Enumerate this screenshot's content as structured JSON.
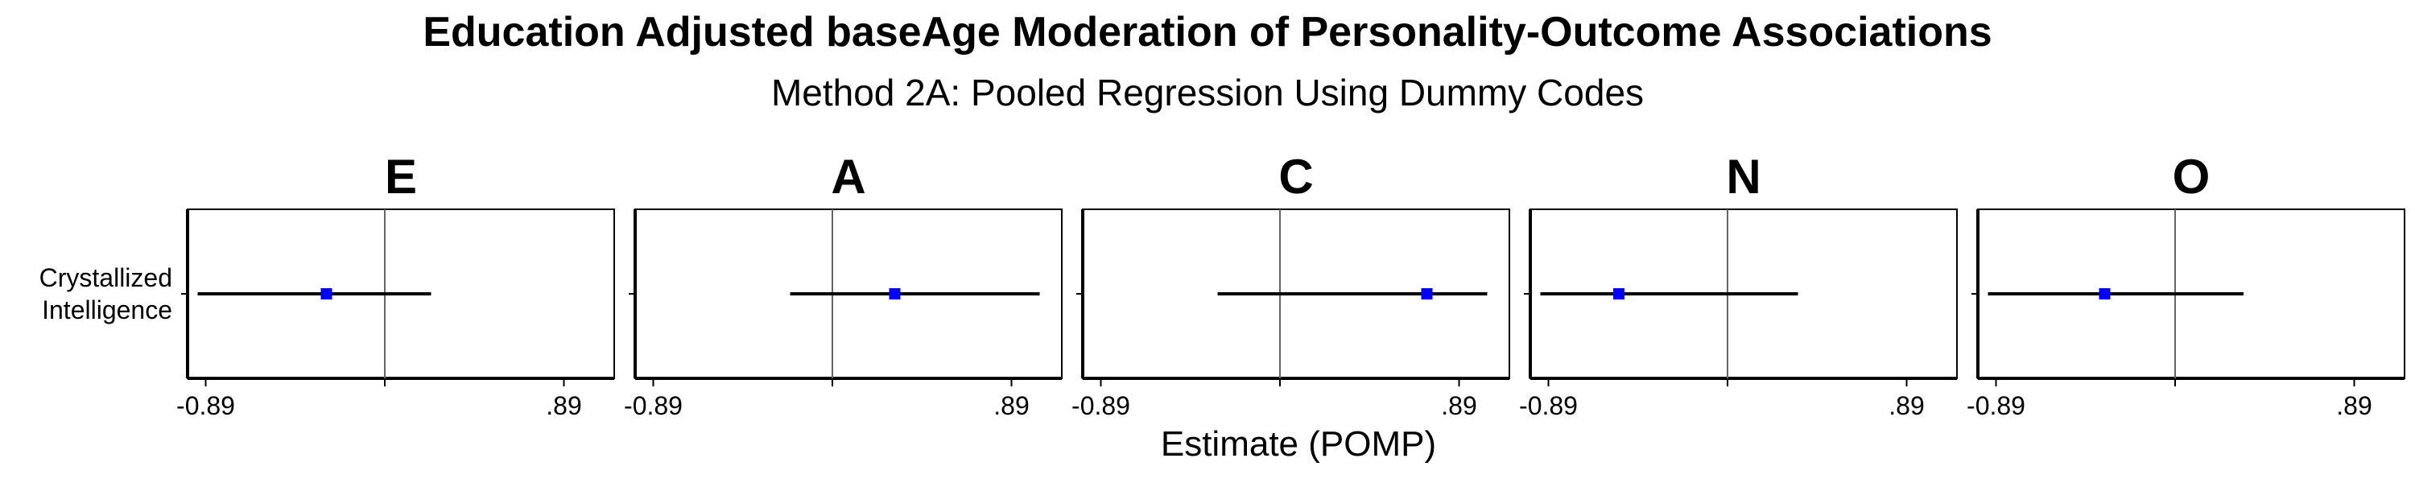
{
  "chart_data": {
    "type": "forest",
    "title": "Education Adjusted baseAge Moderation of Personality-Outcome Associations",
    "subtitle": "Method 2A: Pooled Regression Using Dummy Codes",
    "xlabel": "Estimate (POMP)",
    "y_category": "Crystallized\nIntelligence",
    "xlim": [
      -0.98,
      1.14
    ],
    "x_ticks": [
      {
        "value": -0.89,
        "label": "-0.89"
      },
      {
        "value": 0.0,
        "label": ""
      },
      {
        "value": 0.89,
        "label": ".89"
      }
    ],
    "reference_line": 0,
    "point_color": "#0000ff",
    "panels": [
      {
        "name": "E",
        "estimate": -0.29,
        "ci": [
          -0.93,
          0.23
        ]
      },
      {
        "name": "A",
        "estimate": 0.31,
        "ci": [
          -0.21,
          1.03
        ]
      },
      {
        "name": "C",
        "estimate": 0.73,
        "ci": [
          -0.31,
          1.03
        ]
      },
      {
        "name": "N",
        "estimate": -0.54,
        "ci": [
          -0.93,
          0.35
        ]
      },
      {
        "name": "O",
        "estimate": -0.35,
        "ci": [
          -0.93,
          0.34
        ]
      }
    ]
  }
}
